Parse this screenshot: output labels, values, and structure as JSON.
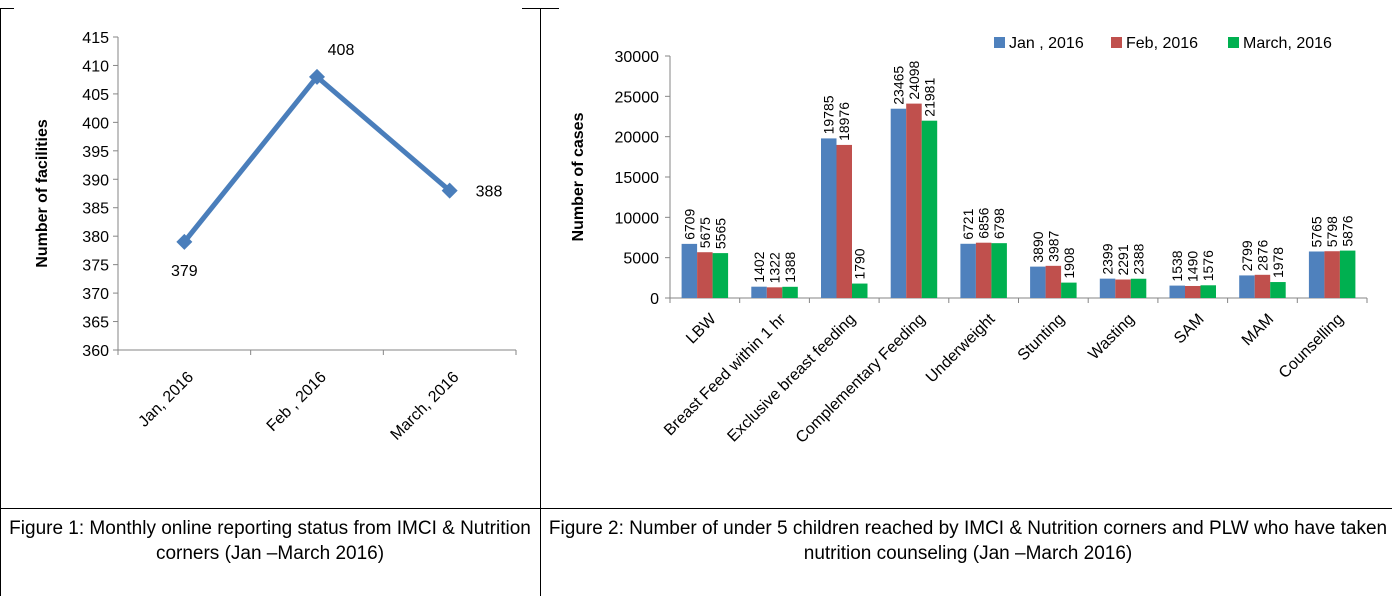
{
  "colors": {
    "line": "#4a7ebb",
    "axis": "#868686",
    "jan": "#4f81bd",
    "feb": "#c0504d",
    "mar": "#00b050"
  },
  "captions": {
    "figure1": "Figure 1: Monthly online reporting status from IMCI & Nutrition corners (Jan –March 2016)",
    "figure2": "Figure 2: Number of under 5 children reached by IMCI & Nutrition corners and PLW  who have taken nutrition counseling (Jan –March 2016)"
  },
  "chart_data": [
    {
      "type": "line",
      "ylabel": "Number of facilities",
      "xlabel": "",
      "categories": [
        "Jan, 2016",
        "Feb , 2016",
        "March, 2016"
      ],
      "values": [
        379,
        408,
        388
      ],
      "data_labels": [
        "379",
        "408",
        "388"
      ],
      "ylim": [
        360,
        415
      ],
      "yticks": [
        360,
        365,
        370,
        375,
        380,
        385,
        390,
        395,
        400,
        405,
        410,
        415
      ],
      "marker": "diamond",
      "grid": false,
      "legend": "none"
    },
    {
      "type": "bar",
      "ylabel": "Number of cases",
      "xlabel": "",
      "categories": [
        "LBW",
        "Breast Feed within 1 hr",
        "Exclusive breast feeding",
        "Complementary Feeding",
        "Underweight",
        "Stunting",
        "Wasting",
        "SAM",
        "MAM",
        "Counselling"
      ],
      "series": [
        {
          "name": "Jan , 2016",
          "values": [
            6709,
            1402,
            19785,
            23465,
            6721,
            3890,
            2399,
            1538,
            2799,
            5765
          ]
        },
        {
          "name": "Feb, 2016",
          "values": [
            5675,
            1322,
            18976,
            24098,
            6856,
            3987,
            2291,
            1490,
            2876,
            5798
          ]
        },
        {
          "name": "March, 2016",
          "values": [
            5565,
            1388,
            1790,
            21981,
            6798,
            1908,
            2388,
            1576,
            1978,
            5876
          ]
        }
      ],
      "ylim": [
        0,
        30000
      ],
      "yticks": [
        0,
        5000,
        10000,
        15000,
        20000,
        25000,
        30000
      ],
      "grid": false,
      "legend": "top-right"
    }
  ]
}
